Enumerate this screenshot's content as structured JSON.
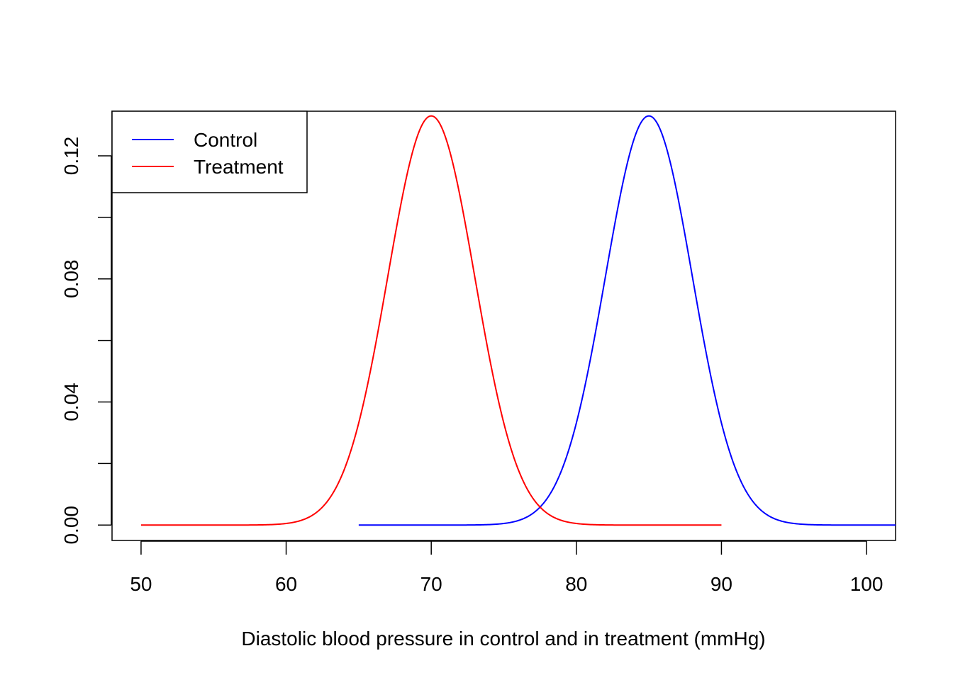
{
  "chart_data": {
    "type": "line",
    "title": "",
    "xlabel": "Diastolic blood pressure in control and in treatment (mmHg)",
    "ylabel": "",
    "xlim": [
      48,
      102
    ],
    "ylim": [
      -0.005,
      0.1345
    ],
    "x_ticks": [
      50,
      60,
      70,
      80,
      90,
      100
    ],
    "x_tick_labels": [
      "50",
      "60",
      "70",
      "80",
      "90",
      "100"
    ],
    "y_ticks": [
      0.0,
      0.02,
      0.04,
      0.06,
      0.08,
      0.1,
      0.12
    ],
    "y_tick_labels": [
      "0.00",
      "",
      "0.04",
      "",
      "0.08",
      "",
      "0.12"
    ],
    "grid": false,
    "legend_position": "top-left",
    "series": [
      {
        "name": "Control",
        "color": "#0000ff",
        "distribution": "normal",
        "mean": 85,
        "sd": 3,
        "x_range": [
          65,
          105
        ],
        "samples": [
          [
            65,
            0.0
          ],
          [
            70,
            0.0
          ],
          [
            75,
            0.0005
          ],
          [
            77.5,
            0.0058
          ],
          [
            80,
            0.0332
          ],
          [
            82.5,
            0.0944
          ],
          [
            85,
            0.133
          ],
          [
            87.5,
            0.0944
          ],
          [
            90,
            0.0332
          ],
          [
            92.5,
            0.0058
          ],
          [
            95,
            0.0005
          ],
          [
            100,
            0.0
          ],
          [
            105,
            0.0
          ]
        ]
      },
      {
        "name": "Treatment",
        "color": "#ff0000",
        "distribution": "normal",
        "mean": 70,
        "sd": 3,
        "x_range": [
          50,
          90
        ],
        "samples": [
          [
            50,
            0.0
          ],
          [
            55,
            0.0
          ],
          [
            60,
            0.0005
          ],
          [
            62.5,
            0.0058
          ],
          [
            65,
            0.0332
          ],
          [
            67.5,
            0.0944
          ],
          [
            70,
            0.133
          ],
          [
            72.5,
            0.0944
          ],
          [
            75,
            0.0332
          ],
          [
            77.5,
            0.0058
          ],
          [
            80,
            0.0005
          ],
          [
            85,
            0.0
          ],
          [
            90,
            0.0
          ]
        ]
      }
    ]
  }
}
